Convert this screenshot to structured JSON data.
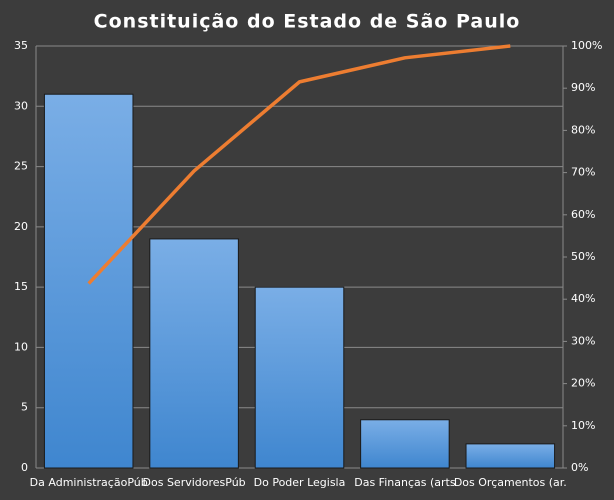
{
  "chart_data": {
    "type": "pareto",
    "title": "Constituição  do Estado  de São Paulo",
    "categories": [
      "Da AdministraçãoPúb",
      "Dos ServidoresPúb",
      "Do Poder Legisla",
      "Das Finanças (arts",
      "Dos Orçamentos (ar."
    ],
    "series": [
      {
        "type": "bar",
        "color": "#4f93d8",
        "values": [
          31,
          19,
          15,
          4,
          2
        ]
      },
      {
        "type": "line",
        "axis": "y2",
        "color": "#ed7d31",
        "values": [
          43.7,
          70.4,
          91.5,
          97.2,
          100
        ]
      }
    ],
    "ylim": [
      0,
      35
    ],
    "yticks": [
      0,
      5,
      10,
      15,
      20,
      25,
      30,
      35
    ],
    "y2lim": [
      0,
      100
    ],
    "y2ticks": [
      {
        "value": 0,
        "label": "0%"
      },
      {
        "value": 10,
        "label": "10%"
      },
      {
        "value": 20,
        "label": "20%"
      },
      {
        "value": 30,
        "label": "30%"
      },
      {
        "value": 40,
        "label": "40%"
      },
      {
        "value": 50,
        "label": "50%"
      },
      {
        "value": 60,
        "label": "60%"
      },
      {
        "value": 70,
        "label": "70%"
      },
      {
        "value": 80,
        "label": "80%"
      },
      {
        "value": 90,
        "label": "90%"
      },
      {
        "value": 100,
        "label": "100%"
      }
    ],
    "grid": true
  }
}
